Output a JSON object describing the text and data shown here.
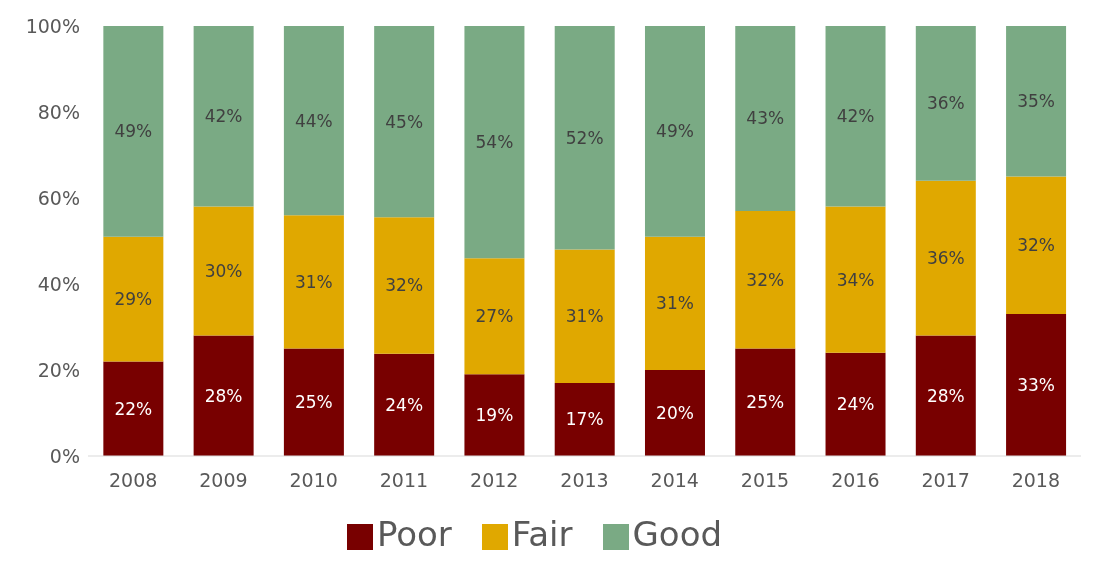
{
  "chart_data": {
    "type": "bar",
    "stacked": true,
    "categories": [
      "2008",
      "2009",
      "2010",
      "2011",
      "2012",
      "2013",
      "2014",
      "2015",
      "2016",
      "2017",
      "2018"
    ],
    "series": [
      {
        "name": "Poor",
        "color": "#780000",
        "values": [
          22,
          28,
          25,
          23.8,
          19,
          17,
          20,
          25,
          24,
          28,
          33
        ],
        "value_labels": [
          "22%",
          "28%",
          "25%",
          "24%",
          "19%",
          "17%",
          "20%",
          "25%",
          "24%",
          "28%",
          "33%"
        ]
      },
      {
        "name": "Fair",
        "color": "#e0a800",
        "values": [
          29,
          30,
          31,
          31.7,
          27,
          31,
          31,
          32,
          34,
          36,
          32
        ],
        "value_labels": [
          "29%",
          "30%",
          "31%",
          "32%",
          "27%",
          "31%",
          "31%",
          "32%",
          "34%",
          "36%",
          "32%"
        ]
      },
      {
        "name": "Good",
        "color": "#7aaa84",
        "values": [
          49,
          42,
          44,
          44.5,
          54,
          52,
          49,
          43,
          42,
          36,
          35
        ],
        "value_labels": [
          "49%",
          "42%",
          "44%",
          "45%",
          "54%",
          "52%",
          "49%",
          "43%",
          "42%",
          "36%",
          "35%"
        ]
      }
    ],
    "ylim": [
      0,
      100
    ],
    "yticks": [
      {
        "value": 0,
        "label": "0%"
      },
      {
        "value": 20,
        "label": "20%"
      },
      {
        "value": 40,
        "label": "40%"
      },
      {
        "value": 60,
        "label": "60%"
      },
      {
        "value": 80,
        "label": "80%"
      },
      {
        "value": 100,
        "label": "100%"
      }
    ],
    "grid": false,
    "legend": "bottom"
  }
}
